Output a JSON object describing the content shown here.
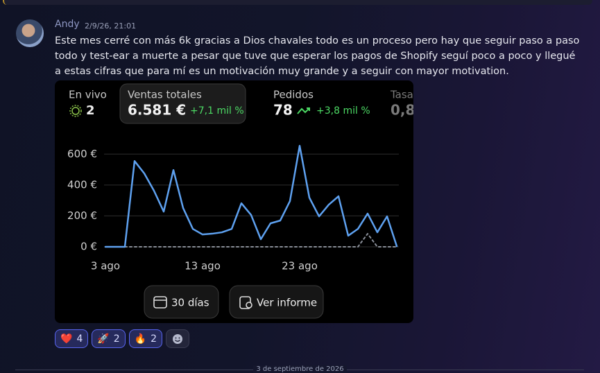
{
  "message": {
    "author": "Andy",
    "timestamp": "2/9/26, 21:01",
    "text": "Este mes cerré con más 6k gracias a Dios chavales todo es un proceso pero  hay que seguir paso a paso todo y test-ear a muerte a pesar que tuve que esperar los pagos de Shopify seguí poco a poco y llegué a estas cifras que para mí es un motivación muy grande y a seguir con mayor motivation."
  },
  "stats": [
    {
      "label": "En vivo",
      "value": "2"
    },
    {
      "label": "Ventas totales",
      "value": "6.581 €",
      "change": "+7,1 mil %"
    },
    {
      "label": "Pedidos",
      "value": "78",
      "change": "+3,8 mil %"
    },
    {
      "label": "Tasa",
      "value": "0,8"
    }
  ],
  "chart_data": {
    "type": "line",
    "categories": [
      "3 ago",
      null,
      null,
      null,
      null,
      null,
      null,
      null,
      null,
      null,
      "13 ago",
      null,
      null,
      null,
      null,
      null,
      null,
      null,
      null,
      null,
      "23 ago",
      null,
      null,
      null,
      null,
      null,
      null,
      null,
      null,
      null,
      null
    ],
    "series": [
      {
        "color": "#5ea1f0",
        "values": [
          0,
          0,
          0,
          555,
          475,
          363,
          228,
          497,
          251,
          116,
          80,
          85,
          94,
          116,
          282,
          206,
          49,
          152,
          170,
          296,
          654,
          318,
          197,
          273,
          327,
          72,
          116,
          215,
          94,
          197,
          4
        ]
      },
      {
        "color": "#8a8f99",
        "values": [
          0,
          0,
          0,
          0,
          0,
          0,
          0,
          0,
          0,
          0,
          0,
          0,
          0,
          0,
          0,
          0,
          0,
          0,
          0,
          0,
          0,
          0,
          0,
          0,
          0,
          0,
          0,
          85,
          0,
          0,
          0
        ]
      }
    ],
    "ylim": [
      0,
      700
    ],
    "yticks": [
      {
        "value": 0,
        "label": "0 €"
      },
      {
        "value": 200,
        "label": "200 €"
      },
      {
        "value": 400,
        "label": "400 €"
      },
      {
        "value": 600,
        "label": "600 €"
      }
    ],
    "grid": true
  },
  "buttons": [
    "30 días",
    "Ver informe"
  ],
  "reactions": [
    {
      "emoji": "❤️",
      "count": "4"
    },
    {
      "emoji": "🚀",
      "count": "2"
    },
    {
      "emoji": "🔥",
      "count": "2"
    }
  ],
  "divider": "3 de septiembre de 2026"
}
